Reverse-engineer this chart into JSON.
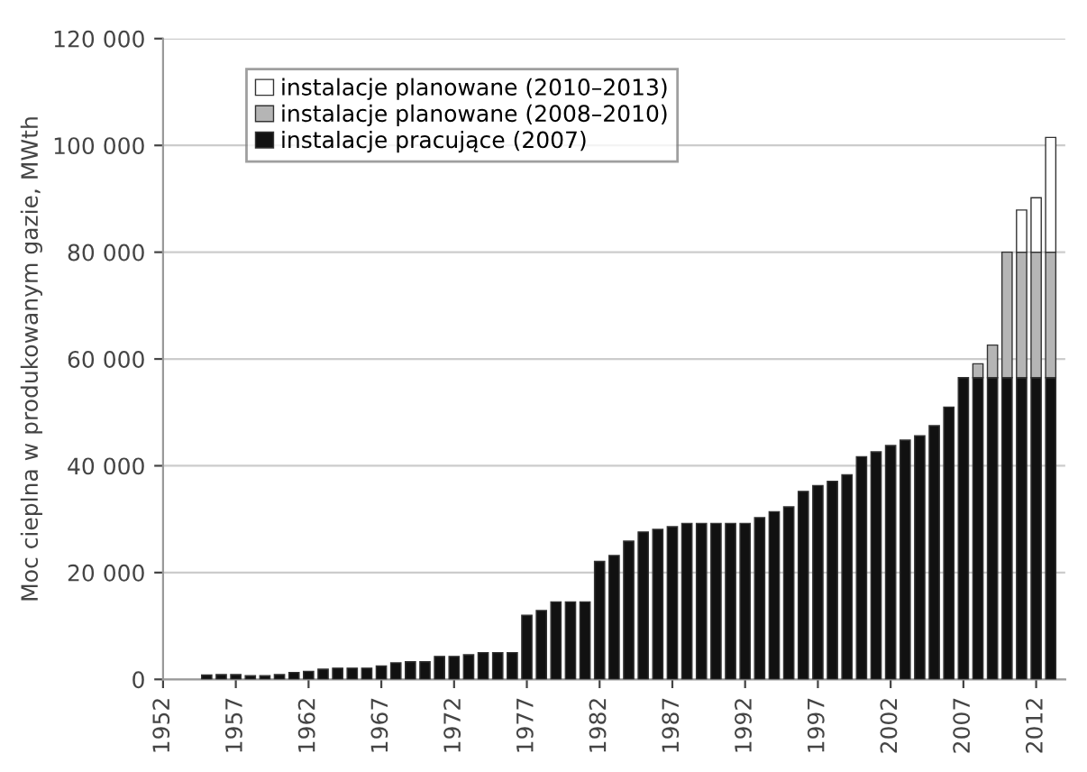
{
  "chart_data": {
    "type": "bar",
    "stacked": true,
    "ylabel": "Moc cieplna w produkowanym gazie, MWth",
    "x": [
      1955,
      1956,
      1957,
      1958,
      1959,
      1960,
      1961,
      1962,
      1963,
      1964,
      1965,
      1966,
      1967,
      1968,
      1969,
      1970,
      1971,
      1972,
      1973,
      1974,
      1975,
      1976,
      1977,
      1978,
      1979,
      1980,
      1981,
      1982,
      1983,
      1984,
      1985,
      1986,
      1987,
      1988,
      1989,
      1990,
      1991,
      1992,
      1993,
      1994,
      1995,
      1996,
      1997,
      1998,
      1999,
      2000,
      2001,
      2002,
      2003,
      2004,
      2005,
      2006,
      2007,
      2008,
      2009,
      2010,
      2011,
      2012,
      2013
    ],
    "series": [
      {
        "name": "instalacje pracujące (2007)",
        "color": "#111111",
        "values": [
          800,
          900,
          900,
          700,
          700,
          900,
          1300,
          1500,
          1900,
          2100,
          2100,
          2100,
          2500,
          3100,
          3300,
          3300,
          4300,
          4300,
          4600,
          5000,
          5000,
          5000,
          12000,
          12900,
          14500,
          14500,
          14500,
          22100,
          23200,
          25900,
          27600,
          28100,
          28600,
          29200,
          29200,
          29200,
          29200,
          29200,
          30300,
          31400,
          32300,
          35200,
          36300,
          37100,
          38300,
          41700,
          42600,
          43800,
          44800,
          45600,
          47500,
          51000,
          56500,
          56500,
          56500,
          56500,
          56500,
          56500,
          56500
        ]
      },
      {
        "name": "instalacje planowane (2008–2010)",
        "color": "#b5b5b5",
        "values": [
          null,
          null,
          null,
          null,
          null,
          null,
          null,
          null,
          null,
          null,
          null,
          null,
          null,
          null,
          null,
          null,
          null,
          null,
          null,
          null,
          null,
          null,
          null,
          null,
          null,
          null,
          null,
          null,
          null,
          null,
          null,
          null,
          null,
          null,
          null,
          null,
          null,
          null,
          null,
          null,
          null,
          null,
          null,
          null,
          null,
          null,
          null,
          null,
          null,
          null,
          null,
          null,
          null,
          2600,
          6100,
          23500,
          23500,
          23500,
          23500
        ]
      },
      {
        "name": "instalacje planowane (2010–2013)",
        "color": "#ffffff",
        "values": [
          null,
          null,
          null,
          null,
          null,
          null,
          null,
          null,
          null,
          null,
          null,
          null,
          null,
          null,
          null,
          null,
          null,
          null,
          null,
          null,
          null,
          null,
          null,
          null,
          null,
          null,
          null,
          null,
          null,
          null,
          null,
          null,
          null,
          null,
          null,
          null,
          null,
          null,
          null,
          null,
          null,
          null,
          null,
          null,
          null,
          null,
          null,
          null,
          null,
          null,
          null,
          null,
          null,
          null,
          null,
          null,
          7900,
          10200,
          21500
        ]
      }
    ],
    "xlim": [
      1952,
      2014
    ],
    "xticks": [
      1952,
      1957,
      1962,
      1967,
      1972,
      1977,
      1982,
      1987,
      1992,
      1997,
      2002,
      2007,
      2012
    ],
    "ylim": [
      0,
      120000
    ],
    "yticks": [
      {
        "value": 0,
        "label": "0"
      },
      {
        "value": 20000,
        "label": "20 000"
      },
      {
        "value": 40000,
        "label": "40 000"
      },
      {
        "value": 60000,
        "label": "60 000"
      },
      {
        "value": 80000,
        "label": "80 000"
      },
      {
        "value": 100000,
        "label": "100 000"
      },
      {
        "value": 120000,
        "label": "120 000"
      }
    ],
    "grid": "y",
    "legend": "top left"
  }
}
